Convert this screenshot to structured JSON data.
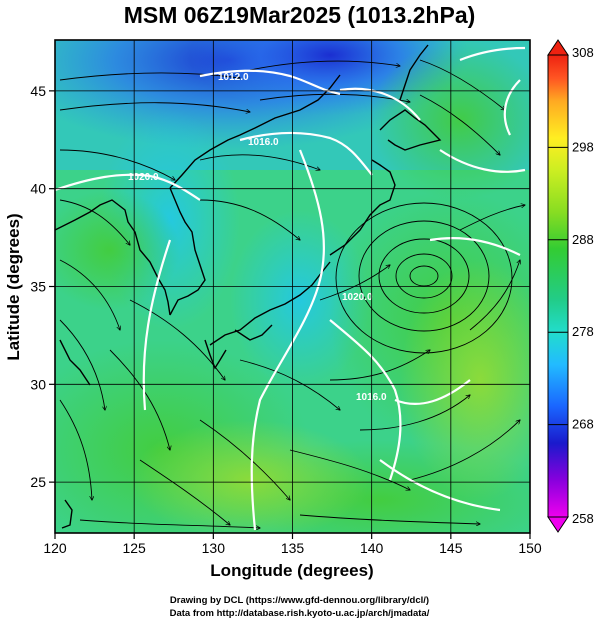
{
  "title": "MSM 06Z19Mar2025 (1013.2hPa)",
  "credits": {
    "line1": "Drawing by DCL (https://www.gfd-dennou.org/library/dcl/)",
    "line2": "Data from http://database.rish.kyoto-u.ac.jp/arch/jmadata/"
  },
  "chart_data": {
    "type": "heatmap",
    "title": "MSM 06Z19Mar2025 (1013.2hPa)",
    "xlabel": "Longitude (degrees)",
    "ylabel": "Latitude  (degrees)",
    "xlim": [
      120,
      150
    ],
    "ylim": [
      22.4,
      47.6
    ],
    "x_ticks": [
      120,
      125,
      130,
      135,
      140,
      145,
      150
    ],
    "y_ticks": [
      25,
      30,
      35,
      40,
      45
    ],
    "grid": true,
    "colorbar": {
      "min": 258,
      "max": 308,
      "ticks": [
        258,
        268,
        278,
        288,
        298,
        308
      ],
      "placement": "right",
      "colors": [
        "#ee00ee",
        "#8800dd",
        "#1a1acc",
        "#1a66ff",
        "#22bbff",
        "#22ddcc",
        "#22cc88",
        "#33cc33",
        "#88dd22",
        "#ccee22",
        "#ffee22",
        "#ffaa22",
        "#ff5522",
        "#ee2211"
      ]
    },
    "contour_labels": [
      "1012.0",
      "1016.0",
      "1020.0",
      "1020.0",
      "1016.0"
    ],
    "low_center": {
      "lon": 143.0,
      "lat": 36.5
    }
  }
}
